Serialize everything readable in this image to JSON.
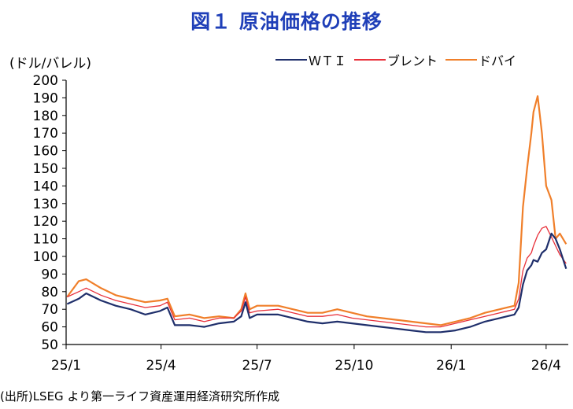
{
  "title": "図１ 原油価格の推移",
  "source": "(出所)LSEG より第一ライフ資産運用経済研究所作成",
  "chart_data": {
    "type": "line",
    "ylabel": "(ドル/バレル)",
    "ylim": [
      50,
      200
    ],
    "yticks": [
      50,
      60,
      70,
      80,
      90,
      100,
      110,
      120,
      130,
      140,
      150,
      160,
      170,
      180,
      190,
      200
    ],
    "xticks": [
      "25/1",
      "25/4",
      "25/7",
      "25/10",
      "26/1",
      "26/4"
    ],
    "x": [
      "25/1/02",
      "25/1/13",
      "25/1/20",
      "25/2/03",
      "25/2/17",
      "25/3/03",
      "25/3/17",
      "25/3/31",
      "25/4/07",
      "25/4/14",
      "25/4/28",
      "25/5/12",
      "25/5/26",
      "25/6/09",
      "25/6/16",
      "25/6/20",
      "25/6/24",
      "25/7/01",
      "25/7/21",
      "25/8/04",
      "25/8/18",
      "25/9/01",
      "25/9/15",
      "25/9/29",
      "25/10/13",
      "25/10/27",
      "25/11/10",
      "25/11/24",
      "25/12/08",
      "25/12/22",
      "26/1/05",
      "26/1/19",
      "26/2/02",
      "26/2/16",
      "26/3/02",
      "26/3/06",
      "26/3/10",
      "26/3/14",
      "26/3/18",
      "26/3/20",
      "26/3/24",
      "26/3/28",
      "26/4/01",
      "26/4/06",
      "26/4/10",
      "26/4/14",
      "26/4/20"
    ],
    "series": [
      {
        "name": "ＷＴＩ",
        "color": "#1f2f6b",
        "values": [
          73,
          76,
          79,
          75,
          72,
          70,
          67,
          69,
          71,
          61,
          61,
          60,
          62,
          63,
          66,
          74,
          65,
          67,
          67,
          65,
          63,
          62,
          63,
          62,
          61,
          60,
          59,
          58,
          57,
          57,
          58,
          60,
          63,
          65,
          67,
          71,
          84,
          92,
          95,
          98,
          97,
          102,
          104,
          113,
          110,
          104,
          93
        ]
      },
      {
        "name": "ブレント",
        "color": "#e8303a",
        "values": [
          77,
          80,
          82,
          78,
          75,
          73,
          71,
          72,
          74,
          64,
          65,
          63,
          65,
          65,
          69,
          77,
          68,
          69,
          70,
          68,
          66,
          66,
          67,
          65,
          64,
          63,
          62,
          61,
          60,
          60,
          62,
          64,
          66,
          68,
          70,
          76,
          92,
          99,
          102,
          106,
          112,
          116,
          117,
          111,
          106,
          101,
          96
        ]
      },
      {
        "name": "ドバイ",
        "color": "#f07f2a",
        "values": [
          77,
          86,
          87,
          82,
          78,
          76,
          74,
          75,
          76,
          66,
          67,
          65,
          66,
          65,
          70,
          79,
          70,
          72,
          72,
          70,
          68,
          68,
          70,
          68,
          66,
          65,
          64,
          63,
          62,
          61,
          63,
          65,
          68,
          70,
          72,
          85,
          128,
          150,
          170,
          182,
          191,
          170,
          140,
          132,
          110,
          113,
          107
        ]
      }
    ]
  }
}
